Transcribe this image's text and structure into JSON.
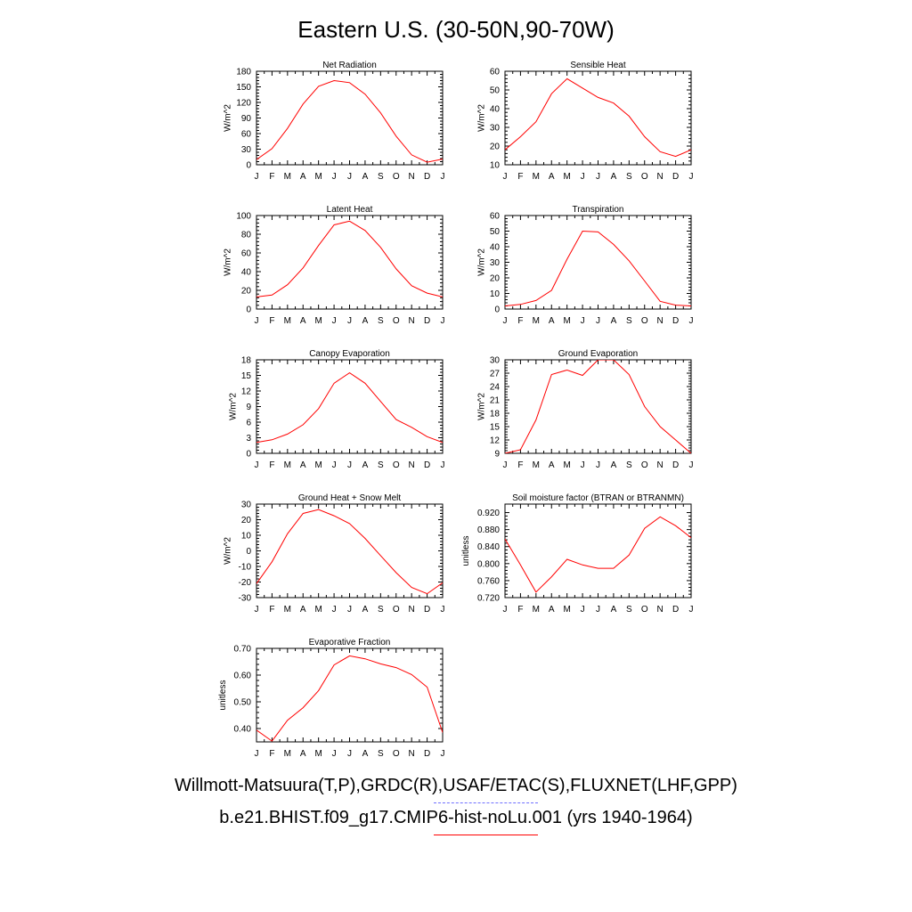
{
  "title": "Eastern U.S. (30-50N,90-70W)",
  "legend": {
    "obs_label": "Willmott-Matsuura(T,P),GRDC(R),USAF/ETAC(S),FLUXNET(LHF,GPP)",
    "obs_color": "#6f6fff",
    "model_label": "b.e21.BHIST.f09_g17.CMIP6-hist-noLu.001 (yrs 1940-1964)",
    "model_color": "#ff0000"
  },
  "chart_data": [
    {
      "type": "line",
      "title": "Net Radiation",
      "xlabel": "",
      "ylabel": "W/m^2",
      "categories": [
        "J",
        "F",
        "M",
        "A",
        "M",
        "J",
        "J",
        "A",
        "S",
        "O",
        "N",
        "D",
        "J"
      ],
      "ylim": [
        0,
        180
      ],
      "yticks": [
        "0",
        "30",
        "60",
        "90",
        "120",
        "150",
        "180"
      ],
      "series": [
        {
          "values": [
            10,
            31,
            70,
            117,
            151,
            162,
            158,
            136,
            100,
            55,
            19,
            5,
            11
          ]
        }
      ]
    },
    {
      "type": "line",
      "title": "Sensible Heat",
      "xlabel": "",
      "ylabel": "W/m^2",
      "categories": [
        "J",
        "F",
        "M",
        "A",
        "M",
        "J",
        "J",
        "A",
        "S",
        "O",
        "N",
        "D",
        "J"
      ],
      "ylim": [
        10,
        60
      ],
      "yticks": [
        "10",
        "20",
        "30",
        "40",
        "50",
        "60"
      ],
      "series": [
        {
          "values": [
            18,
            25,
            33,
            48,
            56,
            51,
            46,
            43,
            36,
            25,
            17,
            14.5,
            18
          ]
        }
      ]
    },
    {
      "type": "line",
      "title": "Latent Heat",
      "xlabel": "",
      "ylabel": "W/m^2",
      "categories": [
        "J",
        "F",
        "M",
        "A",
        "M",
        "J",
        "J",
        "A",
        "S",
        "O",
        "N",
        "D",
        "J"
      ],
      "ylim": [
        0,
        100
      ],
      "yticks": [
        "0",
        "20",
        "40",
        "60",
        "80",
        "100"
      ],
      "series": [
        {
          "values": [
            13,
            15,
            26,
            44,
            68,
            90,
            94,
            84,
            66,
            43,
            25,
            17,
            13
          ]
        }
      ]
    },
    {
      "type": "line",
      "title": "Transpiration",
      "xlabel": "",
      "ylabel": "W/m^2",
      "categories": [
        "J",
        "F",
        "M",
        "A",
        "M",
        "J",
        "J",
        "A",
        "S",
        "O",
        "N",
        "D",
        "J"
      ],
      "ylim": [
        0,
        60
      ],
      "yticks": [
        "0",
        "10",
        "20",
        "30",
        "40",
        "50",
        "60"
      ],
      "series": [
        {
          "values": [
            2,
            3,
            5.5,
            12,
            32,
            50,
            49.5,
            41.5,
            31,
            18,
            5,
            2.5,
            2
          ]
        }
      ]
    },
    {
      "type": "line",
      "title": "Canopy Evaporation",
      "xlabel": "",
      "ylabel": "W/m^2",
      "categories": [
        "J",
        "F",
        "M",
        "A",
        "M",
        "J",
        "J",
        "A",
        "S",
        "O",
        "N",
        "D",
        "J"
      ],
      "ylim": [
        0,
        18
      ],
      "yticks": [
        "0",
        "3",
        "6",
        "9",
        "12",
        "15",
        "18"
      ],
      "series": [
        {
          "values": [
            2.1,
            2.6,
            3.7,
            5.5,
            8.6,
            13.5,
            15.5,
            13.5,
            10,
            6.5,
            5,
            3.2,
            2.1
          ]
        }
      ]
    },
    {
      "type": "line",
      "title": "Ground Evaporation",
      "xlabel": "",
      "ylabel": "W/m^2",
      "categories": [
        "J",
        "F",
        "M",
        "A",
        "M",
        "J",
        "J",
        "A",
        "S",
        "O",
        "N",
        "D",
        "J"
      ],
      "ylim": [
        9,
        30
      ],
      "yticks": [
        "9",
        "12",
        "15",
        "18",
        "21",
        "24",
        "27",
        "30"
      ],
      "series": [
        {
          "values": [
            9,
            9.8,
            16.5,
            26.7,
            27.7,
            26.5,
            30,
            30,
            26.7,
            19.5,
            15,
            12,
            9
          ]
        }
      ]
    },
    {
      "type": "line",
      "title": "Ground Heat + Snow Melt",
      "xlabel": "",
      "ylabel": "W/m^2",
      "categories": [
        "J",
        "F",
        "M",
        "A",
        "M",
        "J",
        "J",
        "A",
        "S",
        "O",
        "N",
        "D",
        "J"
      ],
      "ylim": [
        -30,
        30
      ],
      "yticks": [
        "-30",
        "-20",
        "-10",
        "0",
        "10",
        "20",
        "30"
      ],
      "series": [
        {
          "values": [
            -21,
            -7,
            11,
            24,
            26.5,
            22.5,
            17.5,
            8,
            -3,
            -14,
            -23.5,
            -27.5,
            -20.5
          ]
        }
      ]
    },
    {
      "type": "line",
      "title": "Soil moisture factor (BTRAN or BTRANMN)",
      "xlabel": "",
      "ylabel": "unitless",
      "categories": [
        "J",
        "F",
        "M",
        "A",
        "M",
        "J",
        "J",
        "A",
        "S",
        "O",
        "N",
        "D",
        "J"
      ],
      "ylim": [
        0.72,
        0.94
      ],
      "yticks": [
        "0.720",
        "0.760",
        "0.800",
        "0.840",
        "0.880",
        "0.920"
      ],
      "series": [
        {
          "values": [
            0.858,
            0.797,
            0.733,
            0.769,
            0.81,
            0.797,
            0.789,
            0.789,
            0.82,
            0.883,
            0.91,
            0.889,
            0.861
          ]
        }
      ]
    },
    {
      "type": "line",
      "title": "Evaporative Fraction",
      "xlabel": "",
      "ylabel": "unitless",
      "categories": [
        "J",
        "F",
        "M",
        "A",
        "M",
        "J",
        "J",
        "A",
        "S",
        "O",
        "N",
        "D",
        "J"
      ],
      "ylim": [
        0.35,
        0.7
      ],
      "yticks": [
        "0.40",
        "0.50",
        "0.60",
        "0.70"
      ],
      "series": [
        {
          "values": [
            0.394,
            0.353,
            0.431,
            0.478,
            0.542,
            0.638,
            0.672,
            0.661,
            0.642,
            0.628,
            0.602,
            0.555,
            0.385
          ]
        }
      ]
    }
  ]
}
